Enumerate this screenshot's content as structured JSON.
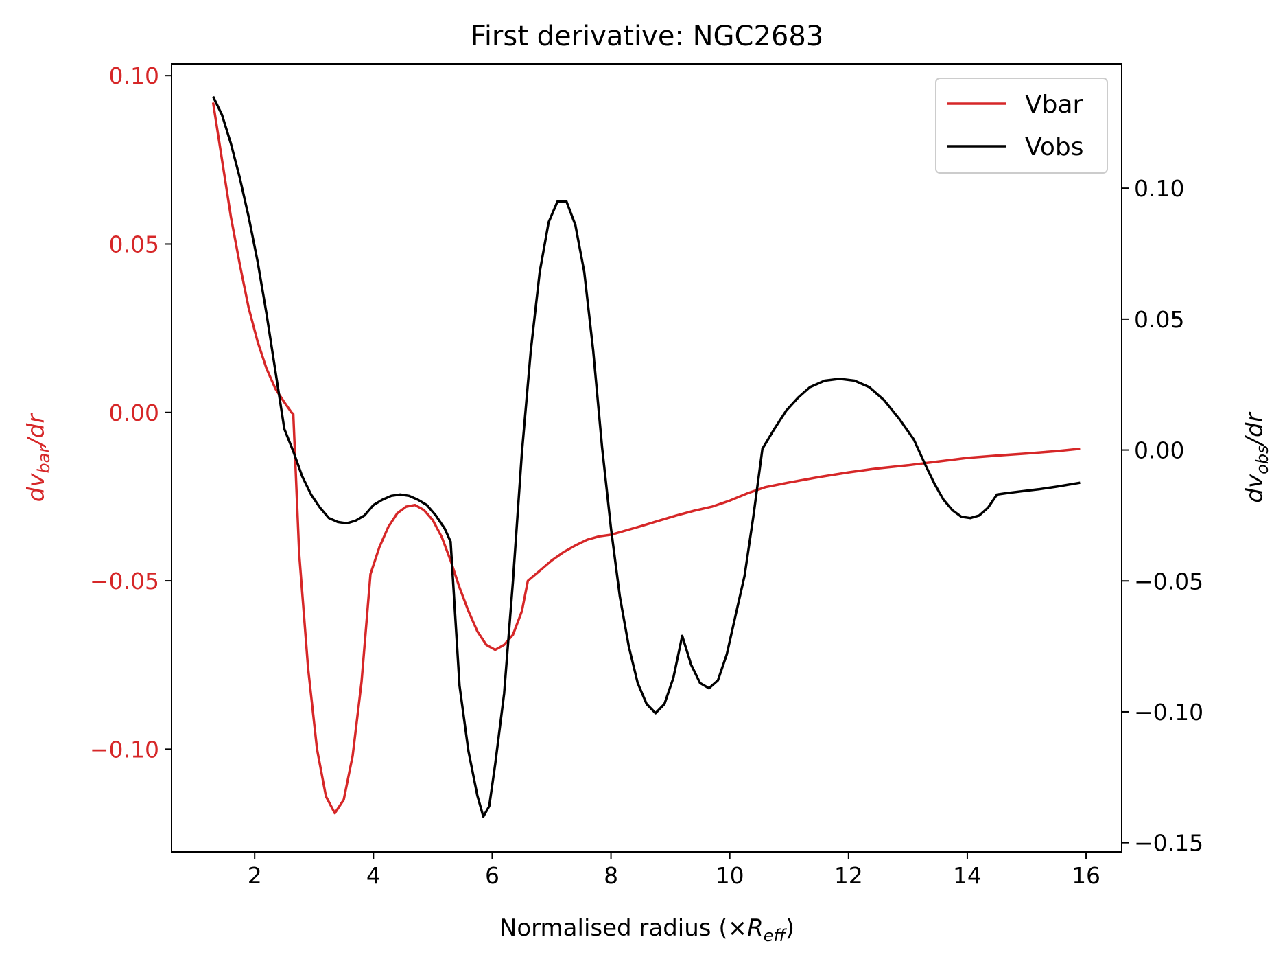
{
  "chart_data": {
    "type": "line",
    "title": "First derivative: NGC2683",
    "xlabel": "Normalised radius (×Reff)",
    "xlabel_parts": {
      "main": "Normalised radius (×",
      "sym": "R",
      "sub": "eff",
      "close": ")"
    },
    "ylabel_left": "dvbar/dr",
    "ylabel_left_parts": {
      "a": "dv",
      "sub": "bar",
      "b": "/dr"
    },
    "ylabel_right": "dvobs/dr",
    "ylabel_right_parts": {
      "a": "dv",
      "sub": "obs",
      "b": "/dr"
    },
    "xlim": [
      0.6,
      16.6
    ],
    "ylim_left": [
      -0.1305,
      0.1035
    ],
    "ylim_right": [
      -0.1535,
      0.1475
    ],
    "x_ticks": [
      2,
      4,
      6,
      8,
      10,
      12,
      14,
      16
    ],
    "x_tick_labels": [
      "2",
      "4",
      "6",
      "8",
      "10",
      "12",
      "14",
      "16"
    ],
    "y_left_ticks": [
      0.1,
      0.05,
      0.0,
      -0.05,
      -0.1
    ],
    "y_left_tick_labels": [
      "0.10",
      "0.05",
      "0.00",
      "−0.05",
      "−0.10"
    ],
    "y_right_ticks": [
      0.1,
      0.05,
      0.0,
      -0.05,
      -0.1,
      -0.15
    ],
    "y_right_tick_labels": [
      "0.10",
      "0.05",
      "0.00",
      "−0.05",
      "−0.10",
      "−0.15"
    ],
    "left_axis_color": "#d62728",
    "right_axis_color": "#000000",
    "legend_position": "top-right",
    "grid": false,
    "series": [
      {
        "name": "Vbar",
        "axis": "left",
        "color": "#d62728",
        "points": [
          [
            1.3,
            0.092
          ],
          [
            1.45,
            0.075
          ],
          [
            1.6,
            0.058
          ],
          [
            1.75,
            0.044
          ],
          [
            1.9,
            0.031
          ],
          [
            2.05,
            0.021
          ],
          [
            2.2,
            0.013
          ],
          [
            2.35,
            0.007
          ],
          [
            2.5,
            0.003
          ],
          [
            2.62,
            0.0
          ],
          [
            2.65,
            -0.0005
          ],
          [
            2.75,
            -0.042
          ],
          [
            2.9,
            -0.076
          ],
          [
            3.05,
            -0.1
          ],
          [
            3.2,
            -0.114
          ],
          [
            3.35,
            -0.119
          ],
          [
            3.5,
            -0.115
          ],
          [
            3.65,
            -0.102
          ],
          [
            3.8,
            -0.08
          ],
          [
            3.95,
            -0.048
          ],
          [
            4.1,
            -0.04
          ],
          [
            4.25,
            -0.034
          ],
          [
            4.4,
            -0.03
          ],
          [
            4.55,
            -0.028
          ],
          [
            4.7,
            -0.0275
          ],
          [
            4.85,
            -0.029
          ],
          [
            5.0,
            -0.032
          ],
          [
            5.15,
            -0.037
          ],
          [
            5.3,
            -0.044
          ],
          [
            5.45,
            -0.052
          ],
          [
            5.6,
            -0.059
          ],
          [
            5.75,
            -0.065
          ],
          [
            5.9,
            -0.069
          ],
          [
            6.05,
            -0.0705
          ],
          [
            6.2,
            -0.069
          ],
          [
            6.35,
            -0.066
          ],
          [
            6.5,
            -0.059
          ],
          [
            6.6,
            -0.05
          ],
          [
            6.8,
            -0.047
          ],
          [
            7.0,
            -0.044
          ],
          [
            7.2,
            -0.0415
          ],
          [
            7.4,
            -0.0395
          ],
          [
            7.6,
            -0.0378
          ],
          [
            7.8,
            -0.0368
          ],
          [
            8.0,
            -0.0363
          ],
          [
            8.2,
            -0.0353
          ],
          [
            8.5,
            -0.0338
          ],
          [
            8.8,
            -0.0322
          ],
          [
            9.1,
            -0.0306
          ],
          [
            9.4,
            -0.0292
          ],
          [
            9.7,
            -0.028
          ],
          [
            10.0,
            -0.0262
          ],
          [
            10.3,
            -0.024
          ],
          [
            10.6,
            -0.0222
          ],
          [
            11.0,
            -0.0208
          ],
          [
            11.5,
            -0.0192
          ],
          [
            12.0,
            -0.0178
          ],
          [
            12.5,
            -0.0166
          ],
          [
            13.0,
            -0.0157
          ],
          [
            13.5,
            -0.0146
          ],
          [
            14.0,
            -0.0135
          ],
          [
            14.5,
            -0.0128
          ],
          [
            15.0,
            -0.0122
          ],
          [
            15.5,
            -0.0115
          ],
          [
            15.9,
            -0.0108
          ]
        ]
      },
      {
        "name": "Vobs",
        "axis": "right",
        "color": "#000000",
        "points": [
          [
            1.3,
            0.135
          ],
          [
            1.45,
            0.128
          ],
          [
            1.6,
            0.117
          ],
          [
            1.75,
            0.104
          ],
          [
            1.9,
            0.089
          ],
          [
            2.05,
            0.072
          ],
          [
            2.2,
            0.052
          ],
          [
            2.35,
            0.03
          ],
          [
            2.5,
            0.008
          ],
          [
            2.65,
            -0.0005
          ],
          [
            2.8,
            -0.01
          ],
          [
            2.95,
            -0.017
          ],
          [
            3.1,
            -0.022
          ],
          [
            3.25,
            -0.026
          ],
          [
            3.4,
            -0.0275
          ],
          [
            3.55,
            -0.028
          ],
          [
            3.7,
            -0.027
          ],
          [
            3.85,
            -0.025
          ],
          [
            4.0,
            -0.021
          ],
          [
            4.15,
            -0.019
          ],
          [
            4.3,
            -0.0175
          ],
          [
            4.45,
            -0.017
          ],
          [
            4.6,
            -0.0175
          ],
          [
            4.75,
            -0.019
          ],
          [
            4.9,
            -0.021
          ],
          [
            5.05,
            -0.025
          ],
          [
            5.2,
            -0.03
          ],
          [
            5.3,
            -0.035
          ],
          [
            5.45,
            -0.09
          ],
          [
            5.6,
            -0.115
          ],
          [
            5.75,
            -0.132
          ],
          [
            5.85,
            -0.14
          ],
          [
            5.95,
            -0.136
          ],
          [
            6.05,
            -0.12
          ],
          [
            6.2,
            -0.093
          ],
          [
            6.35,
            -0.05
          ],
          [
            6.5,
            -0.001
          ],
          [
            6.65,
            0.038
          ],
          [
            6.8,
            0.068
          ],
          [
            6.95,
            0.087
          ],
          [
            7.1,
            0.095
          ],
          [
            7.25,
            0.095
          ],
          [
            7.4,
            0.086
          ],
          [
            7.55,
            0.068
          ],
          [
            7.7,
            0.038
          ],
          [
            7.85,
            0.001
          ],
          [
            8.0,
            -0.03
          ],
          [
            8.15,
            -0.056
          ],
          [
            8.3,
            -0.075
          ],
          [
            8.45,
            -0.089
          ],
          [
            8.6,
            -0.097
          ],
          [
            8.75,
            -0.1005
          ],
          [
            8.9,
            -0.097
          ],
          [
            9.05,
            -0.087
          ],
          [
            9.2,
            -0.071
          ],
          [
            9.35,
            -0.082
          ],
          [
            9.5,
            -0.089
          ],
          [
            9.65,
            -0.091
          ],
          [
            9.8,
            -0.088
          ],
          [
            9.95,
            -0.078
          ],
          [
            10.1,
            -0.063
          ],
          [
            10.25,
            -0.048
          ],
          [
            10.4,
            -0.025
          ],
          [
            10.55,
            0.0005
          ],
          [
            10.75,
            0.008
          ],
          [
            10.95,
            0.015
          ],
          [
            11.15,
            0.02
          ],
          [
            11.35,
            0.024
          ],
          [
            11.6,
            0.0265
          ],
          [
            11.85,
            0.0272
          ],
          [
            12.1,
            0.0265
          ],
          [
            12.35,
            0.024
          ],
          [
            12.6,
            0.019
          ],
          [
            12.85,
            0.012
          ],
          [
            13.1,
            0.004
          ],
          [
            13.3,
            -0.006
          ],
          [
            13.45,
            -0.013
          ],
          [
            13.6,
            -0.019
          ],
          [
            13.75,
            -0.023
          ],
          [
            13.9,
            -0.0255
          ],
          [
            14.05,
            -0.026
          ],
          [
            14.2,
            -0.025
          ],
          [
            14.35,
            -0.022
          ],
          [
            14.5,
            -0.017
          ],
          [
            14.65,
            -0.0165
          ],
          [
            14.9,
            -0.0158
          ],
          [
            15.2,
            -0.015
          ],
          [
            15.5,
            -0.014
          ],
          [
            15.9,
            -0.0125
          ]
        ]
      }
    ]
  }
}
